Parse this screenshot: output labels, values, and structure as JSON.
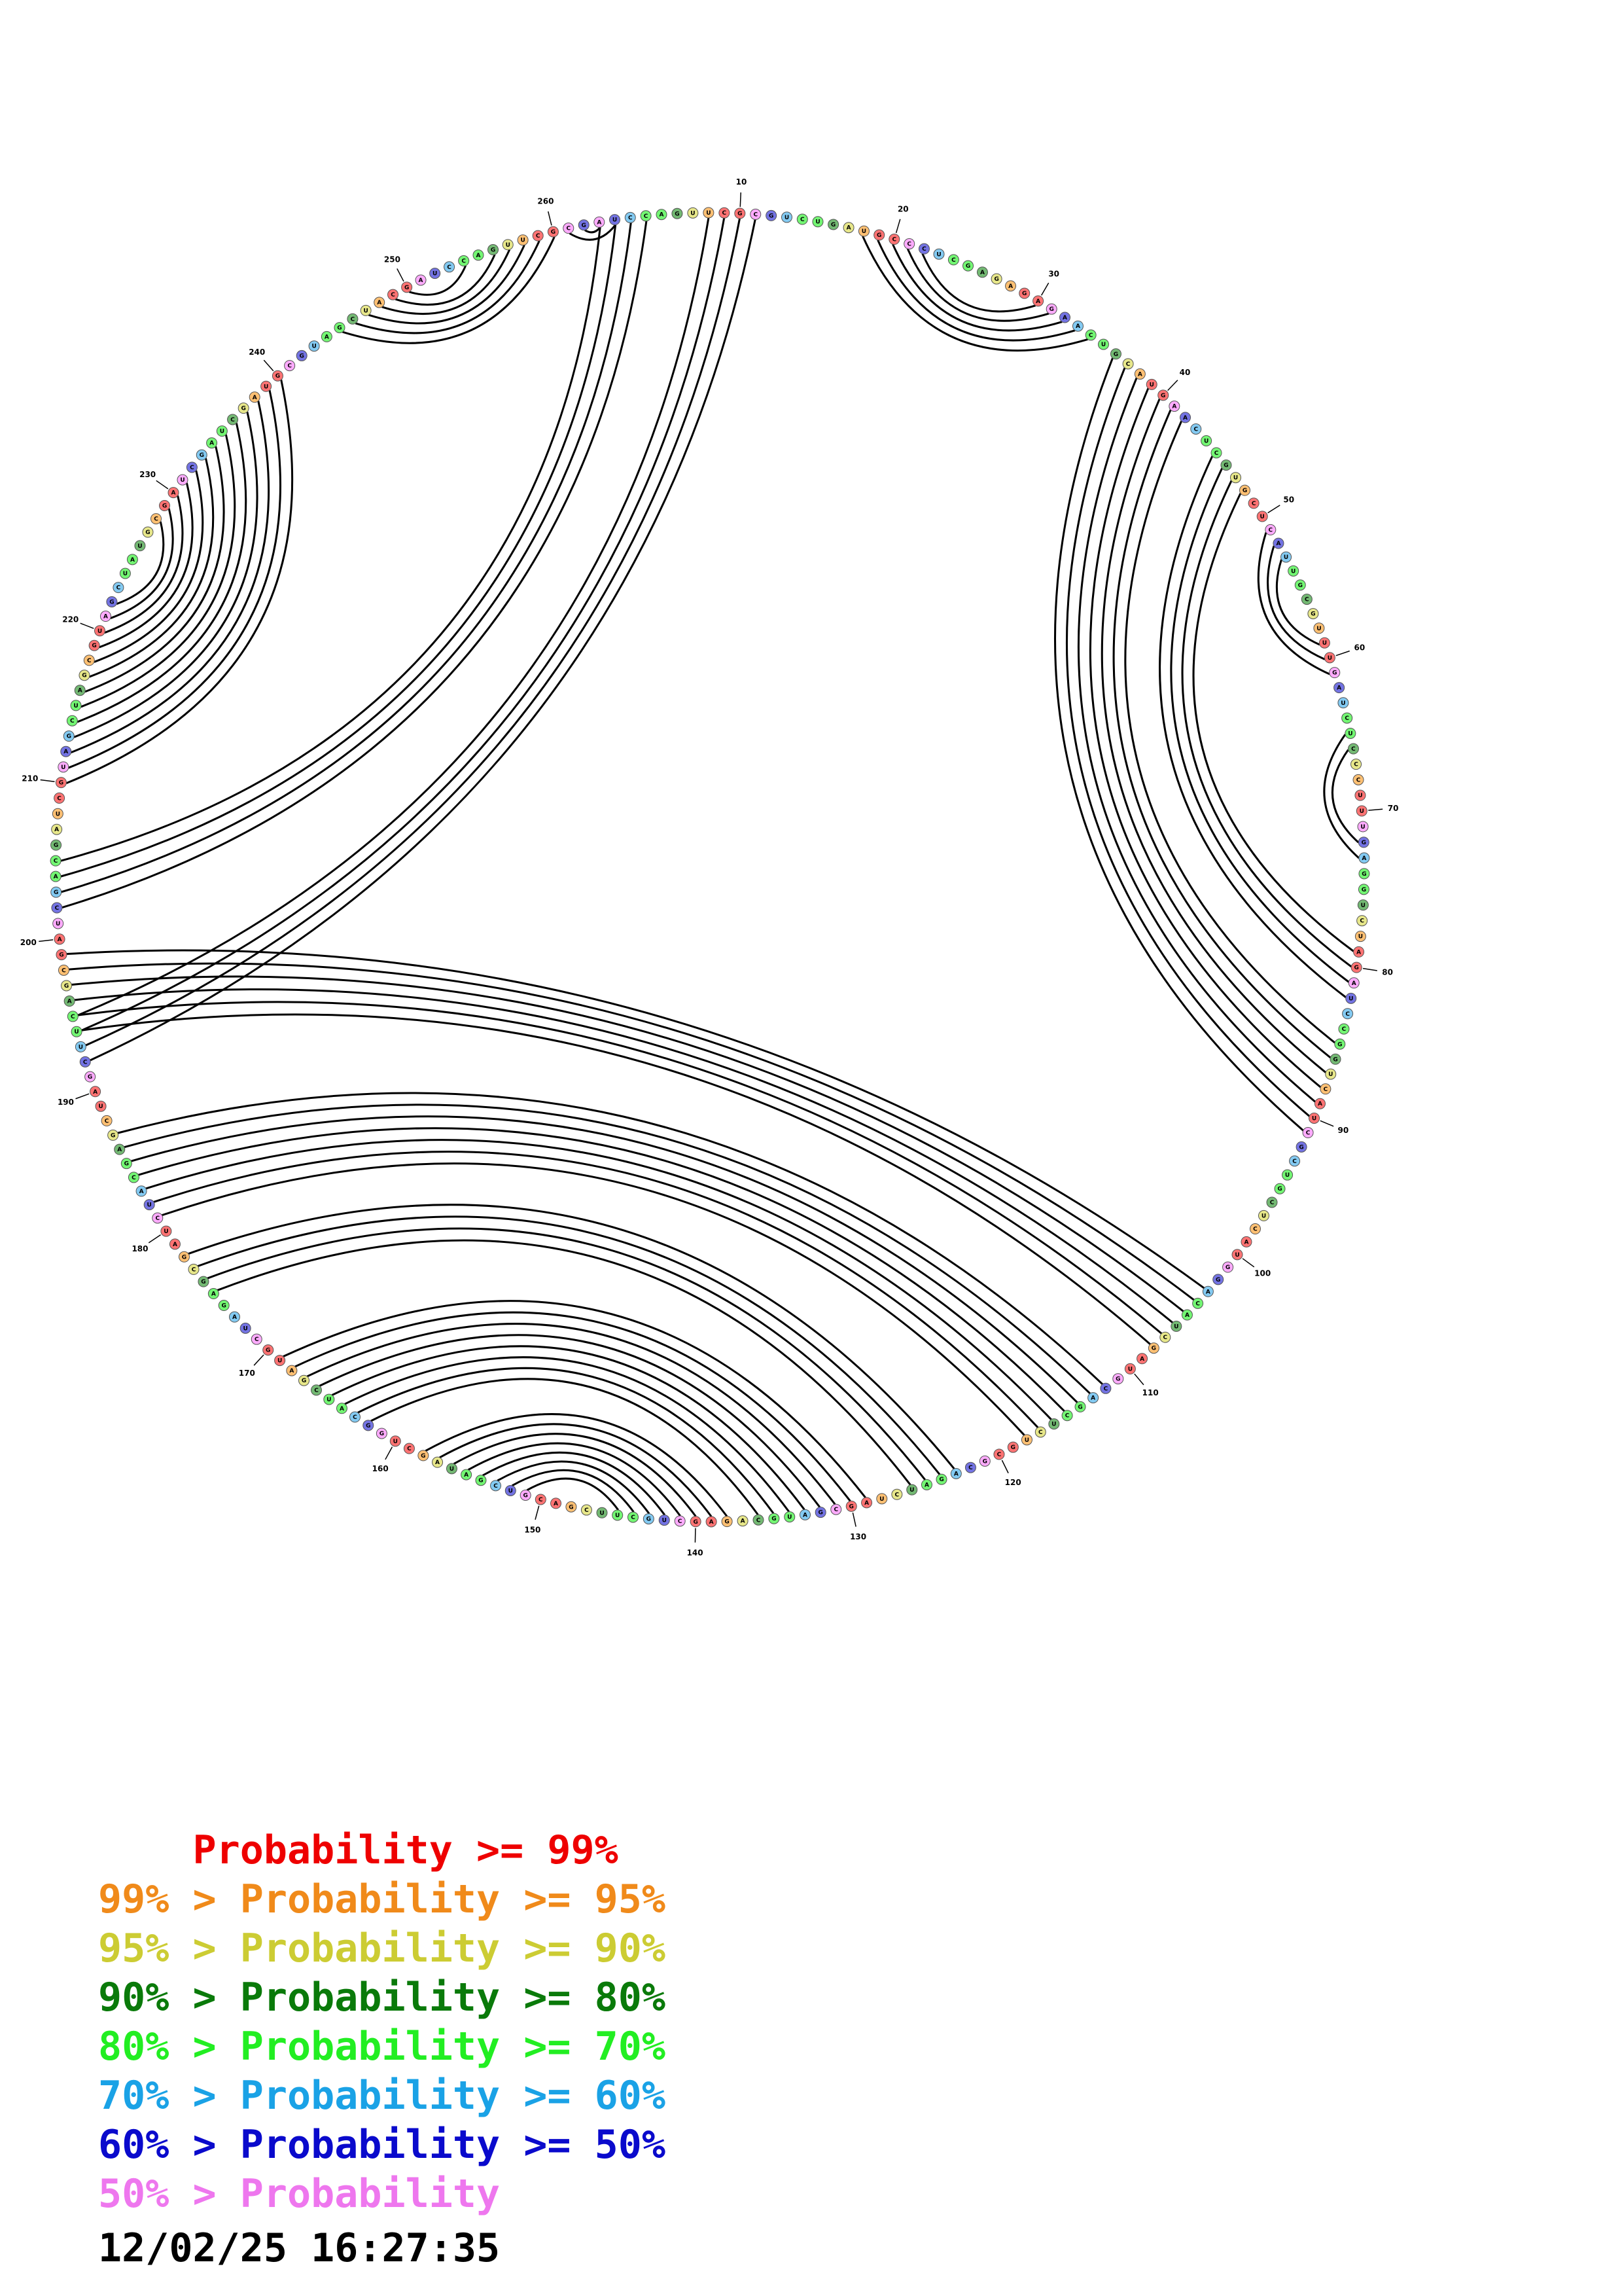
{
  "diagram": {
    "sequence_length": 262,
    "nucleotides": "AUCCAGUUCGCGUCUGAUGCCCUCGAGAGAGAACUGCAUGAACUCGUGCUCAUUGCGUUUGAUCUCCCUUUGAGGUCUAGAUCCGGUCAUCGCUGCUCAUGGACAUCGAUGCAGCUCUGCGCAGAUCUAGCGAUGCAGAGCUGCUUCGACGUCGAUAGCUGGCAUCGAUGCUAGAGCGAUCUACGAGCUAGCUUCAGCGAUCGACGAUCGUAGCUAGCGUAGCUAUGCGAUCGAUCGAUGCGUAGCUACG",
    "position_labels": [
      "10",
      "20",
      "30",
      "40",
      "50",
      "60",
      "70",
      "80",
      "90",
      "100",
      "110",
      "120",
      "130",
      "140",
      "150",
      "160",
      "170",
      "180",
      "190",
      "200",
      "210",
      "220",
      "230",
      "240",
      "250",
      "260"
    ],
    "pairs": [
      [
        1,
        262
      ],
      [
        2,
        261
      ],
      [
        18,
        34
      ],
      [
        19,
        33
      ],
      [
        20,
        32
      ],
      [
        21,
        31
      ],
      [
        22,
        30
      ],
      [
        36,
        91
      ],
      [
        37,
        90
      ],
      [
        38,
        89
      ],
      [
        39,
        88
      ],
      [
        40,
        87
      ],
      [
        41,
        86
      ],
      [
        42,
        85
      ],
      [
        45,
        82
      ],
      [
        46,
        81
      ],
      [
        47,
        80
      ],
      [
        48,
        79
      ],
      [
        51,
        61
      ],
      [
        52,
        60
      ],
      [
        53,
        59
      ],
      [
        65,
        73
      ],
      [
        66,
        72
      ],
      [
        1,
        205
      ],
      [
        2,
        204
      ],
      [
        3,
        203
      ],
      [
        4,
        202
      ],
      [
        8,
        195
      ],
      [
        9,
        194
      ],
      [
        10,
        193
      ],
      [
        11,
        192
      ],
      [
        199,
        103
      ],
      [
        198,
        104
      ],
      [
        197,
        105
      ],
      [
        196,
        106
      ],
      [
        195,
        107
      ],
      [
        194,
        108
      ],
      [
        187,
        112
      ],
      [
        186,
        113
      ],
      [
        185,
        114
      ],
      [
        184,
        115
      ],
      [
        183,
        116
      ],
      [
        182,
        117
      ],
      [
        181,
        118
      ],
      [
        178,
        123
      ],
      [
        177,
        124
      ],
      [
        176,
        125
      ],
      [
        175,
        126
      ],
      [
        169,
        129
      ],
      [
        168,
        130
      ],
      [
        167,
        131
      ],
      [
        166,
        132
      ],
      [
        165,
        133
      ],
      [
        164,
        134
      ],
      [
        163,
        135
      ],
      [
        162,
        136
      ],
      [
        158,
        138
      ],
      [
        157,
        139
      ],
      [
        156,
        140
      ],
      [
        155,
        141
      ],
      [
        154,
        142
      ],
      [
        153,
        143
      ],
      [
        152,
        144
      ],
      [
        151,
        145
      ],
      [
        210,
        240
      ],
      [
        211,
        239
      ],
      [
        212,
        238
      ],
      [
        213,
        237
      ],
      [
        214,
        236
      ],
      [
        215,
        235
      ],
      [
        216,
        234
      ],
      [
        217,
        233
      ],
      [
        218,
        232
      ],
      [
        219,
        231
      ],
      [
        220,
        230
      ],
      [
        221,
        229
      ],
      [
        222,
        228
      ],
      [
        245,
        260
      ],
      [
        246,
        259
      ],
      [
        247,
        258
      ],
      [
        248,
        257
      ],
      [
        249,
        256
      ],
      [
        250,
        254
      ]
    ],
    "category_colors": [
      "#ff0000",
      "#ff8c00",
      "#d4d42a",
      "#008000",
      "#00ee00",
      "#1e9fe8",
      "#0000cc",
      "#ff66ff"
    ]
  },
  "legend": {
    "rows": [
      {
        "prefix": "    ",
        "label": "Probability >= 99%",
        "color": "#ee0000"
      },
      {
        "prefix": "99% > ",
        "label": "Probability >= 95%",
        "color": "#f08a1a"
      },
      {
        "prefix": "95% > ",
        "label": "Probability >= 90%",
        "color": "#cccc33"
      },
      {
        "prefix": "90% > ",
        "label": "Probability >= 80%",
        "color": "#0a7a0a"
      },
      {
        "prefix": "80% > ",
        "label": "Probability >= 70%",
        "color": "#22ee22"
      },
      {
        "prefix": "70% > ",
        "label": "Probability >= 60%",
        "color": "#1aa2e6"
      },
      {
        "prefix": "60% > ",
        "label": "Probability >= 50%",
        "color": "#0a0acc"
      },
      {
        "prefix": "50% > ",
        "label": "Probability",
        "color": "#ee77ee"
      }
    ]
  },
  "timestamp": "12/02/25 16:27:35"
}
